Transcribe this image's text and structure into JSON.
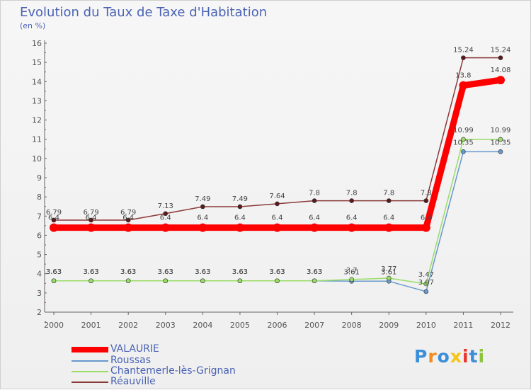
{
  "chart_data": {
    "type": "line",
    "title": "Evolution du Taux de Taxe d'Habitation",
    "ylabel": "(en %)",
    "xlabel": "",
    "ylim": [
      2,
      16
    ],
    "yticks": [
      "2",
      "3",
      "4",
      "5",
      "6",
      "7",
      "8",
      "9",
      "10",
      "11",
      "12",
      "13",
      "14",
      "15",
      "16"
    ],
    "categories": [
      "2000",
      "2001",
      "2002",
      "2003",
      "2004",
      "2005",
      "2006",
      "2007",
      "2008",
      "2009",
      "2010",
      "2011",
      "2012"
    ],
    "series": [
      {
        "name": "VALAURIE",
        "color": "#ff0000",
        "width": 9,
        "marker": 6,
        "labelColor": "#444444",
        "values": [
          6.4,
          6.4,
          6.4,
          6.4,
          6.4,
          6.4,
          6.4,
          6.4,
          6.4,
          6.4,
          6.4,
          13.8,
          14.08
        ],
        "labels": [
          "6.4",
          "6.4",
          "6.4",
          "6.4",
          "6.4",
          "6.4",
          "6.4",
          "6.4",
          "6.4",
          "6.4",
          "6.4",
          "13.8",
          "14.08"
        ]
      },
      {
        "name": "Roussas",
        "color": "#6699cc",
        "width": 1.5,
        "marker": 3,
        "labelColor": "#444444",
        "values": [
          3.63,
          3.63,
          3.63,
          3.63,
          3.63,
          3.63,
          3.63,
          3.63,
          3.61,
          3.61,
          3.07,
          10.35,
          10.35
        ],
        "labels": [
          "3.63",
          "3.63",
          "3.63",
          "3.63",
          "3.63",
          "3.63",
          "3.63",
          "3.63",
          "3.61",
          "3.61",
          "3.07",
          "10.35",
          "10.35"
        ]
      },
      {
        "name": "Chantemerle-lès-Grignan",
        "color": "#99dd66",
        "width": 1.5,
        "marker": 3,
        "labelColor": "#444444",
        "values": [
          3.63,
          3.63,
          3.63,
          3.63,
          3.63,
          3.63,
          3.63,
          3.63,
          3.7,
          3.77,
          3.47,
          10.99,
          10.99
        ],
        "labels": [
          "3.63",
          "3.63",
          "3.63",
          "3.63",
          "3.63",
          "3.63",
          "3.63",
          "3.63",
          "3.7",
          "3.77",
          "3.47",
          "10.99",
          "10.99"
        ]
      },
      {
        "name": "Réauville",
        "color": "#8b3a3a",
        "width": 1.5,
        "marker": 3,
        "labelColor": "#444444",
        "values": [
          6.79,
          6.79,
          6.79,
          7.13,
          7.49,
          7.49,
          7.64,
          7.8,
          7.8,
          7.8,
          7.8,
          15.24,
          15.24
        ],
        "labels": [
          "6.79",
          "6.79",
          "6.79",
          "7.13",
          "7.49",
          "7.49",
          "7.64",
          "7.8",
          "7.8",
          "7.8",
          "7.8",
          "15.24",
          "15.24"
        ]
      }
    ],
    "legend_position": "bottom-left",
    "grid": false
  },
  "header": {
    "title": "Evolution du Taux de Taxe d'Habitation",
    "unit": "(en %)"
  },
  "legend": {
    "items": [
      {
        "label": "VALAURIE",
        "color": "#ff0000"
      },
      {
        "label": "Roussas",
        "color": "#6699cc"
      },
      {
        "label": "Chantemerle-lès-Grignan",
        "color": "#99dd66"
      },
      {
        "label": "Réauville",
        "color": "#8b3a3a"
      }
    ]
  },
  "logo": {
    "letters": [
      "P",
      "r",
      "o",
      "x",
      "i",
      "t",
      "i"
    ],
    "colors": [
      "#3b8ed8",
      "#f28c1e",
      "#3b8ed8",
      "#f5c518",
      "#e8352e",
      "#3b8ed8",
      "#8bc53f"
    ]
  }
}
